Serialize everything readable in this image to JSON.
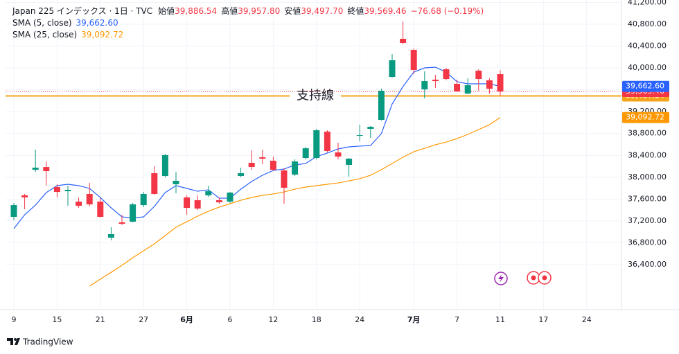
{
  "chart_data": {
    "type": "candlestick",
    "legend": {
      "symbol": "Japan 225 インデックス · 1日 · TVC",
      "ohlc": [
        {
          "name": "始値",
          "label": "39,886.54"
        },
        {
          "name": "高値",
          "label": "39,957.80"
        },
        {
          "name": "安値",
          "label": "39,497.70"
        },
        {
          "name": "終値",
          "label": "39,569.46"
        }
      ],
      "change": "−76.68 (−0.19%)"
    },
    "categories": [
      "9",
      null,
      null,
      null,
      "15",
      null,
      null,
      null,
      "21",
      null,
      null,
      null,
      "27",
      null,
      null,
      null,
      "6月",
      null,
      null,
      null,
      "6",
      null,
      null,
      null,
      "12",
      null,
      null,
      null,
      "18",
      null,
      null,
      null,
      "24",
      null,
      null,
      null,
      null,
      "7月",
      null,
      null,
      null,
      "7",
      null,
      null,
      null,
      "11",
      null,
      null,
      null,
      "17",
      null,
      null,
      null,
      "24",
      null,
      null,
      null
    ],
    "open": [
      37275,
      37668,
      38137,
      38187,
      37820,
      37744,
      37554,
      37694,
      37554,
      36894,
      37174,
      37186,
      37490,
      38074,
      38023,
      37871,
      37630,
      37579,
      37668,
      37579,
      37554,
      38023,
      38264,
      38366,
      38302,
      38124,
      38048,
      38353,
      38353,
      38835,
      38454,
      38226,
      38758,
      38885,
      39050,
      39836,
      40534,
      40331,
      39608,
      39786,
      39976,
      39710,
      39532,
      39950,
      39773,
      39886.54,
      null,
      null,
      null,
      null,
      null,
      null,
      null,
      null,
      null,
      null,
      null
    ],
    "high": [
      37529,
      37694,
      38505,
      38289,
      37871,
      37846,
      37630,
      37896,
      37630,
      37085,
      37313,
      37529,
      37731,
      38201,
      38429,
      38099,
      37668,
      37668,
      37846,
      37630,
      37731,
      38175,
      38492,
      38505,
      38378,
      38163,
      38327,
      38556,
      38885,
      38860,
      38632,
      38353,
      38961,
      38935,
      39621,
      40255,
      40851,
      40356,
      39938,
      39874,
      40001,
      39786,
      39811,
      39976,
      39811,
      39957.8,
      null,
      null,
      null,
      null,
      null,
      null,
      null,
      null,
      null,
      null,
      null
    ],
    "low": [
      37212,
      37415,
      38099,
      37846,
      37630,
      37478,
      37440,
      37465,
      37260,
      36844,
      37123,
      37174,
      37453,
      37681,
      37998,
      37706,
      37313,
      37402,
      37643,
      37516,
      37529,
      38000,
      38137,
      38239,
      38112,
      37516,
      38023,
      38327,
      38327,
      38454,
      38327,
      38010,
      38657,
      38720,
      39037,
      39824,
      40432,
      39887,
      39443,
      39634,
      39773,
      39557,
      39520,
      39583,
      39532,
      39497.7,
      null,
      null,
      null,
      null,
      null,
      null,
      null,
      null,
      null,
      null,
      null
    ],
    "close": [
      37490,
      37630,
      38175,
      38112,
      37731,
      37770,
      37478,
      37503,
      37275,
      36958,
      37148,
      37503,
      37694,
      37694,
      38404,
      37934,
      37440,
      37427,
      37744,
      37541,
      37719,
      38074,
      38188,
      38340,
      38137,
      37807,
      38289,
      38530,
      38860,
      38480,
      38378,
      38340,
      38771,
      38923,
      39583,
      40141,
      40458,
      39963,
      39760,
      39760,
      39798,
      39570,
      39684,
      39798,
      39621,
      39569.46,
      null,
      null,
      null,
      null,
      null,
      null,
      null,
      null,
      null,
      null,
      null
    ],
    "up_color": "#089981",
    "down_color": "#f23645",
    "series": [
      {
        "name": "SMA (5, close)",
        "color": "#2962ff",
        "values": [
          37059,
          37313,
          37490,
          37719,
          37846,
          37871,
          37846,
          37795,
          37630,
          37440,
          37275,
          37250,
          37275,
          37465,
          37719,
          37846,
          37795,
          37744,
          37770,
          37617,
          37617,
          37782,
          37922,
          38036,
          38124,
          38150,
          38226,
          38251,
          38378,
          38442,
          38518,
          38556,
          38569,
          38581,
          38797,
          39342,
          39659,
          39925,
          40001,
          40014,
          39925,
          39748,
          39710,
          39710,
          39710,
          39662.6,
          null,
          null,
          null,
          null,
          null,
          null,
          null,
          null,
          null,
          null,
          null
        ],
        "value_labels": [
          null,
          null,
          null,
          null,
          null,
          null,
          null,
          null,
          null,
          null,
          null,
          null,
          null,
          null,
          null,
          null,
          null,
          null,
          null,
          null,
          null,
          null,
          null,
          null,
          null,
          null,
          null,
          null,
          null,
          null,
          null,
          null,
          null,
          null,
          null,
          null,
          null,
          null,
          null,
          null,
          null,
          null,
          null,
          null,
          null,
          "39,662.60",
          null,
          null,
          null,
          null,
          null,
          null,
          null,
          null,
          null,
          null,
          null
        ]
      },
      {
        "name": "SMA (25, close)",
        "color": "#ff9800",
        "values": [
          null,
          null,
          null,
          null,
          null,
          null,
          null,
          36007,
          36134,
          36260,
          36387,
          36527,
          36654,
          36781,
          36933,
          37085,
          37186,
          37288,
          37377,
          37453,
          37516,
          37579,
          37630,
          37668,
          37694,
          37731,
          37782,
          37820,
          37846,
          37871,
          37896,
          37934,
          37973,
          38036,
          38137,
          38251,
          38366,
          38467,
          38530,
          38594,
          38644,
          38708,
          38784,
          38873,
          38961,
          39092.72,
          null,
          null,
          null,
          null,
          null,
          null,
          null,
          null,
          null,
          null,
          null
        ],
        "value_labels": [
          null,
          null,
          null,
          null,
          null,
          null,
          null,
          null,
          null,
          null,
          null,
          null,
          null,
          null,
          null,
          null,
          null,
          null,
          null,
          null,
          null,
          null,
          null,
          null,
          null,
          null,
          null,
          null,
          null,
          null,
          null,
          null,
          null,
          null,
          null,
          null,
          null,
          null,
          null,
          null,
          null,
          null,
          null,
          null,
          null,
          "39,092.72",
          null,
          null,
          null,
          null,
          null,
          null,
          null,
          null,
          null,
          null,
          null
        ]
      }
    ],
    "hline": {
      "label": "支持線",
      "value": 39487.84,
      "value_label": "39,487.84",
      "color": "#f5a31a"
    },
    "ylim": [
      35576,
      41244
    ],
    "yticks": [
      {
        "value": 36400,
        "label": "36,400.00"
      },
      {
        "value": 36800,
        "label": "36,800.00"
      },
      {
        "value": 37200,
        "label": "37,200.00"
      },
      {
        "value": 37600,
        "label": "37,600.00"
      },
      {
        "value": 38000,
        "label": "38,000.00"
      },
      {
        "value": 38400,
        "label": "38,400.00"
      },
      {
        "value": 38800,
        "label": "38,800.00"
      },
      {
        "value": 39200,
        "label": "39,200.00"
      },
      {
        "value": 39600,
        "label": "39,600.00"
      },
      {
        "value": 40000,
        "label": "40,000.00"
      },
      {
        "value": 40400,
        "label": "40,400.00"
      },
      {
        "value": 40800,
        "label": "40,800.00"
      },
      {
        "value": 41200,
        "label": "41,200.00"
      }
    ],
    "grid": true,
    "brand": "TradingView"
  }
}
